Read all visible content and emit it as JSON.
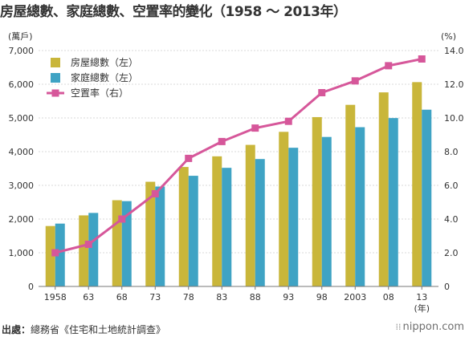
{
  "title": "房屋總數、家庭總數、空置率的變化（1958 ～ 2013年）",
  "source": {
    "label": "出處：",
    "text": "總務省《住宅和土地統計調查》"
  },
  "logo": "nippon.com",
  "chart_data": {
    "type": "bar",
    "categories": [
      "1958",
      "63",
      "68",
      "73",
      "78",
      "83",
      "88",
      "93",
      "98",
      "2003",
      "08",
      "13"
    ],
    "x_unit": "(年)",
    "left_axis": {
      "unit": "(萬戶)",
      "ylim": [
        0,
        7000
      ],
      "ticks": [
        0,
        1000,
        2000,
        3000,
        4000,
        5000,
        6000,
        7000
      ],
      "tick_labels": [
        "0",
        "1,000",
        "2,000",
        "3,000",
        "4,000",
        "5,000",
        "6,000",
        "7,000"
      ]
    },
    "right_axis": {
      "unit": "(%)",
      "ylim": [
        0,
        14
      ],
      "ticks": [
        0,
        2,
        4,
        6,
        8,
        10,
        12,
        14
      ],
      "tick_labels": [
        "0",
        "2.0",
        "4.0",
        "6.0",
        "8.0",
        "10.0",
        "12.0",
        "14.0"
      ]
    },
    "series": [
      {
        "name": "房屋總數（左）",
        "type": "bar",
        "axis": "left",
        "color": "#c9b63a",
        "values": [
          1793,
          2109,
          2559,
          3106,
          3545,
          3861,
          4201,
          4588,
          5025,
          5389,
          5759,
          6063
        ]
      },
      {
        "name": "家庭總數（左）",
        "type": "bar",
        "axis": "left",
        "color": "#3fa3c4",
        "values": [
          1865,
          2182,
          2532,
          2965,
          3284,
          3520,
          3781,
          4116,
          4436,
          4726,
          4997,
          5245
        ]
      },
      {
        "name": "空置率（右）",
        "type": "line",
        "axis": "right",
        "color": "#d6579a",
        "values": [
          2.0,
          2.5,
          4.0,
          5.5,
          7.6,
          8.6,
          9.4,
          9.8,
          11.5,
          12.2,
          13.1,
          13.5
        ]
      }
    ],
    "legend_position": "top-left",
    "grid": true
  }
}
